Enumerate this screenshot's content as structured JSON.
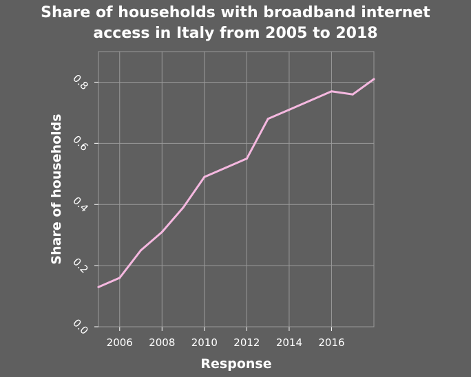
{
  "chart_data": {
    "type": "line",
    "title_lines": [
      "Share of households with broadband internet",
      "access in Italy from 2005 to 2018"
    ],
    "xlabel": "Response",
    "ylabel": "Share of households",
    "xlim": [
      2005,
      2018
    ],
    "ylim": [
      0.0,
      0.9
    ],
    "x_ticks": [
      2006,
      2008,
      2010,
      2012,
      2014,
      2016
    ],
    "y_ticks": [
      0.0,
      0.2,
      0.4,
      0.6,
      0.8
    ],
    "y_tick_labels": [
      "0.0",
      "0.2",
      "0.4",
      "0.6",
      "0.8"
    ],
    "grid": true,
    "series": [
      {
        "color": "#f5b8e0",
        "x": [
          2005,
          2006,
          2007,
          2008,
          2009,
          2010,
          2011,
          2012,
          2013,
          2014,
          2015,
          2016,
          2017,
          2018
        ],
        "y": [
          0.13,
          0.16,
          0.25,
          0.31,
          0.39,
          0.49,
          0.52,
          0.55,
          0.68,
          0.71,
          0.74,
          0.77,
          0.76,
          0.81
        ]
      }
    ],
    "colors": {
      "background": "#5f5f5f",
      "grid": "#9a9a9a",
      "text": "#ffffff"
    }
  }
}
